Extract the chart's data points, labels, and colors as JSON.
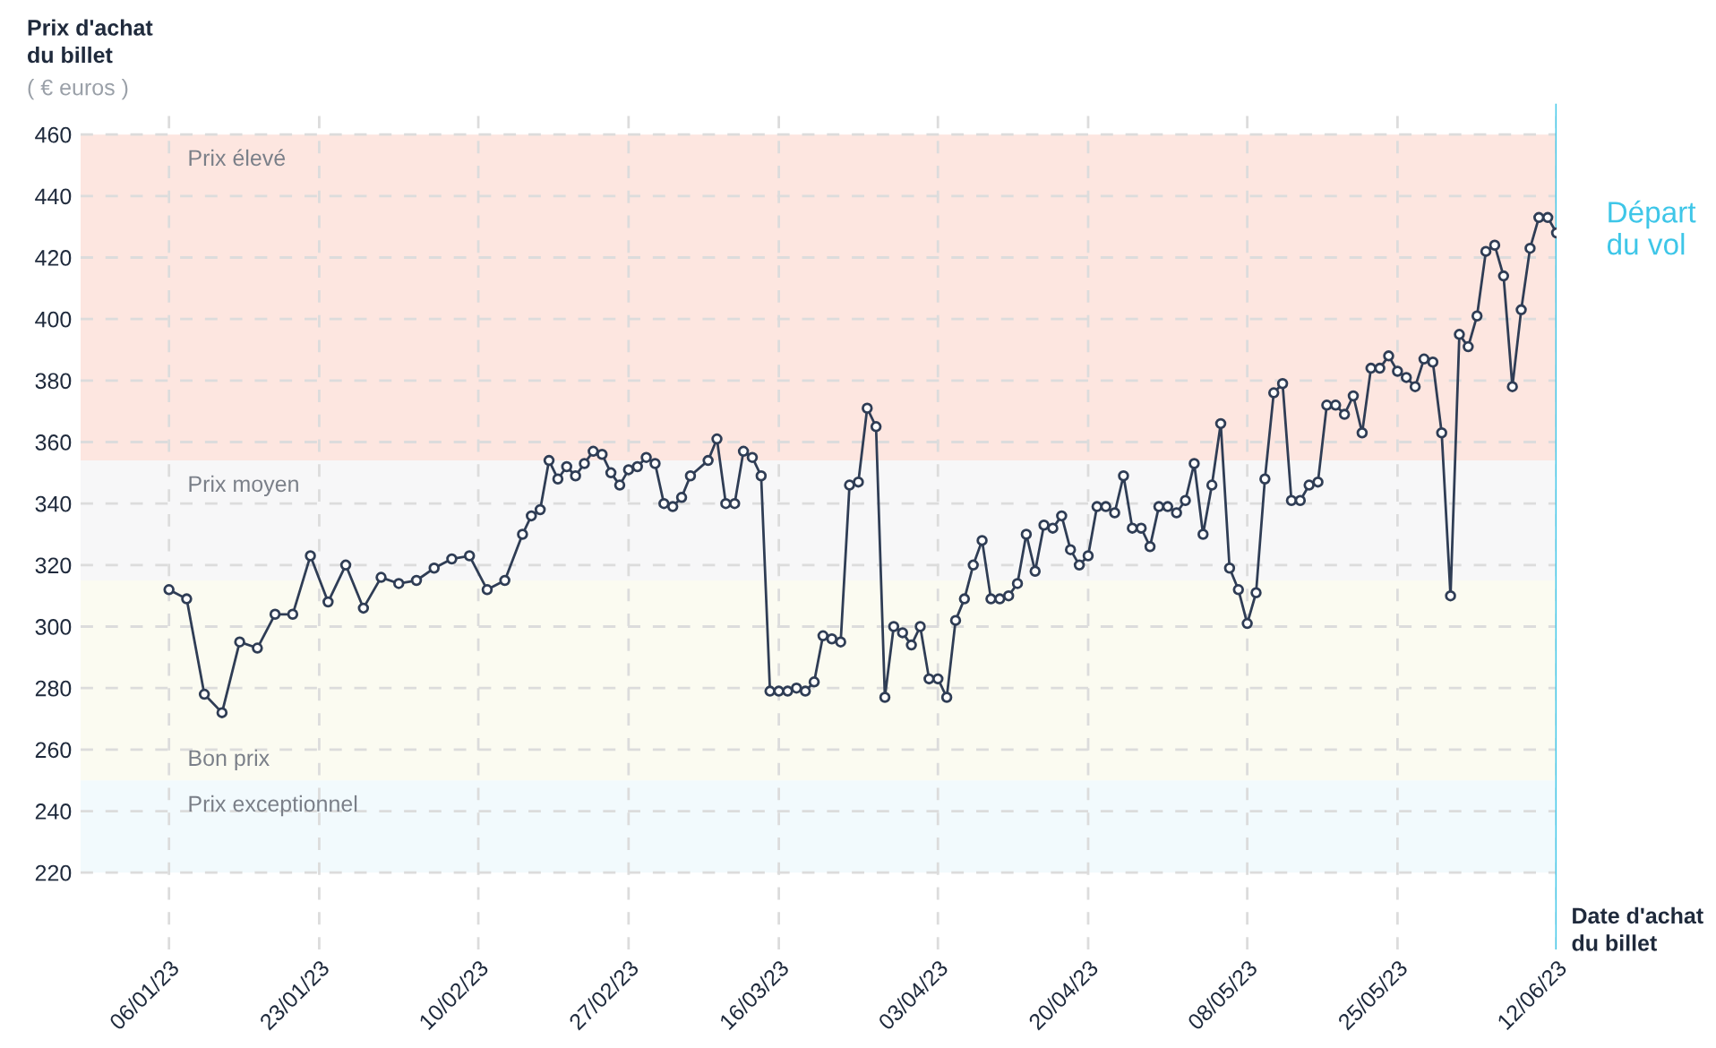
{
  "chart_data": {
    "type": "line",
    "ylabel": "Prix d'achat\ndu billet",
    "xlabel": "Date d'achat\ndu billet",
    "annotations": [
      "( € euros )"
    ],
    "x": [
      "2023-01-06",
      "2023-01-08",
      "2023-01-10",
      "2023-01-12",
      "2023-01-14",
      "2023-01-16",
      "2023-01-18",
      "2023-01-20",
      "2023-01-22",
      "2023-01-24",
      "2023-01-26",
      "2023-01-28",
      "2023-01-30",
      "2023-02-01",
      "2023-02-03",
      "2023-02-05",
      "2023-02-07",
      "2023-02-09",
      "2023-02-11",
      "2023-02-13",
      "2023-02-15",
      "2023-02-16",
      "2023-02-17",
      "2023-02-18",
      "2023-02-19",
      "2023-02-20",
      "2023-02-21",
      "2023-02-22",
      "2023-02-23",
      "2023-02-24",
      "2023-02-25",
      "2023-02-26",
      "2023-02-27",
      "2023-02-28",
      "2023-03-01",
      "2023-03-02",
      "2023-03-03",
      "2023-03-04",
      "2023-03-05",
      "2023-03-06",
      "2023-03-08",
      "2023-03-09",
      "2023-03-10",
      "2023-03-11",
      "2023-03-12",
      "2023-03-13",
      "2023-03-14",
      "2023-03-15",
      "2023-03-16",
      "2023-03-17",
      "2023-03-18",
      "2023-03-19",
      "2023-03-20",
      "2023-03-21",
      "2023-03-22",
      "2023-03-23",
      "2023-03-24",
      "2023-03-25",
      "2023-03-26",
      "2023-03-27",
      "2023-03-28",
      "2023-03-29",
      "2023-03-30",
      "2023-03-31",
      "2023-04-01",
      "2023-04-02",
      "2023-04-03",
      "2023-04-04",
      "2023-04-05",
      "2023-04-06",
      "2023-04-07",
      "2023-04-08",
      "2023-04-09",
      "2023-04-10",
      "2023-04-11",
      "2023-04-12",
      "2023-04-13",
      "2023-04-14",
      "2023-04-15",
      "2023-04-16",
      "2023-04-17",
      "2023-04-18",
      "2023-04-19",
      "2023-04-20",
      "2023-04-21",
      "2023-04-22",
      "2023-04-23",
      "2023-04-24",
      "2023-04-25",
      "2023-04-26",
      "2023-04-27",
      "2023-04-28",
      "2023-04-29",
      "2023-04-30",
      "2023-05-01",
      "2023-05-02",
      "2023-05-03",
      "2023-05-04",
      "2023-05-05",
      "2023-05-06",
      "2023-05-07",
      "2023-05-08",
      "2023-05-09",
      "2023-05-10",
      "2023-05-11",
      "2023-05-12",
      "2023-05-13",
      "2023-05-14",
      "2023-05-15",
      "2023-05-16",
      "2023-05-17",
      "2023-05-18",
      "2023-05-19",
      "2023-05-20",
      "2023-05-21",
      "2023-05-22",
      "2023-05-23",
      "2023-05-24",
      "2023-05-25",
      "2023-05-26",
      "2023-05-27",
      "2023-05-28",
      "2023-05-29",
      "2023-05-30",
      "2023-05-31",
      "2023-06-01",
      "2023-06-02",
      "2023-06-03",
      "2023-06-04",
      "2023-06-05",
      "2023-06-06",
      "2023-06-07",
      "2023-06-08",
      "2023-06-09",
      "2023-06-10",
      "2023-06-11",
      "2023-06-12"
    ],
    "series": [
      {
        "color": "#2f3d55",
        "values": [
          312,
          309,
          278,
          272,
          295,
          293,
          304,
          304,
          323,
          308,
          320,
          306,
          316,
          314,
          315,
          319,
          322,
          323,
          312,
          315,
          330,
          336,
          338,
          354,
          348,
          352,
          349,
          353,
          357,
          356,
          350,
          346,
          351,
          352,
          355,
          353,
          340,
          339,
          342,
          349,
          354,
          361,
          340,
          340,
          357,
          355,
          349,
          279,
          279,
          279,
          280,
          279,
          282,
          297,
          296,
          295,
          346,
          347,
          371,
          365,
          277,
          300,
          298,
          294,
          300,
          283,
          283,
          277,
          302,
          309,
          320,
          328,
          309,
          309,
          310,
          314,
          330,
          318,
          333,
          332,
          336,
          325,
          320,
          323,
          339,
          339,
          337,
          349,
          332,
          332,
          326,
          339,
          339,
          337,
          341,
          353,
          330,
          346,
          366,
          319,
          312,
          301,
          311,
          348,
          376,
          379,
          341,
          341,
          346,
          347,
          372,
          372,
          369,
          375,
          363,
          384,
          384,
          388,
          383,
          381,
          378,
          387,
          386,
          363,
          310,
          395,
          391,
          401,
          422,
          424,
          414,
          378,
          403,
          423,
          433,
          433,
          428
        ]
      }
    ],
    "marker": "circle",
    "line_style": "solid",
    "grid": true,
    "legend": false,
    "xlim": [
      "2022-12-27",
      "2023-06-12"
    ],
    "ylim": [
      195,
      470
    ],
    "yticks": [
      220,
      240,
      260,
      280,
      300,
      320,
      340,
      360,
      380,
      400,
      420,
      440,
      460
    ],
    "xticks": [
      {
        "value": "2023-01-06",
        "label": "06/01/23"
      },
      {
        "value": "2023-01-23",
        "label": "23/01/23"
      },
      {
        "value": "2023-02-10",
        "label": "10/02/23"
      },
      {
        "value": "2023-02-27",
        "label": "27/02/23"
      },
      {
        "value": "2023-03-16",
        "label": "16/03/23"
      },
      {
        "value": "2023-04-03",
        "label": "03/04/23"
      },
      {
        "value": "2023-04-20",
        "label": "20/04/23"
      },
      {
        "value": "2023-05-08",
        "label": "08/05/23"
      },
      {
        "value": "2023-05-25",
        "label": "25/05/23"
      },
      {
        "value": "2023-06-12",
        "label": "12/06/23"
      }
    ],
    "bands": [
      {
        "axis": "y",
        "from": 354,
        "to": 460,
        "label": "Prix élevé",
        "color": "#fde6e0"
      },
      {
        "axis": "y",
        "from": 315,
        "to": 354,
        "label": "Prix moyen",
        "color": "#f7f7f8"
      },
      {
        "axis": "y",
        "from": 250,
        "to": 315,
        "label": "Bon prix",
        "color": "#fbfbf1"
      },
      {
        "axis": "y",
        "from": 220,
        "to": 250,
        "label": "Prix exceptionnel",
        "color": "#f2fafd"
      }
    ],
    "ref_lines": [
      {
        "axis": "x",
        "value": "2023-06-12",
        "label": "Départ\ndu vol",
        "color": "#3ec6e8",
        "line_style": "solid"
      }
    ]
  }
}
